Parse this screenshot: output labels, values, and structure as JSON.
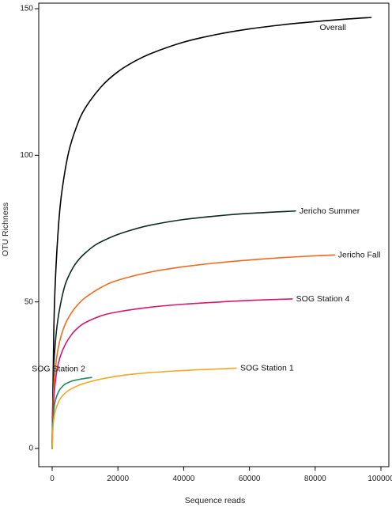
{
  "chart_data": {
    "type": "line",
    "title": "",
    "xlabel": "Sequence reads",
    "ylabel": "OTU Richness",
    "xlim": [
      0,
      100000
    ],
    "ylim": [
      0,
      150
    ],
    "xticks": [
      0,
      20000,
      40000,
      60000,
      80000,
      100000
    ],
    "yticks": [
      0,
      50,
      100,
      150
    ],
    "grid": false,
    "series": [
      {
        "name": "Overall",
        "color": "#000000",
        "x": [
          0,
          500,
          1000,
          2000,
          3000,
          5000,
          7500,
          10000,
          15000,
          20000,
          25000,
          30000,
          40000,
          50000,
          60000,
          70000,
          80000,
          90000,
          97000
        ],
        "y": [
          0,
          40,
          58,
          77,
          88,
          101,
          110,
          116,
          123.5,
          128.5,
          132,
          134.7,
          138.6,
          141.2,
          143.1,
          144.5,
          145.6,
          146.5,
          147
        ]
      },
      {
        "name": "Jericho Summer",
        "color": "#0b2a1f",
        "x": [
          0,
          300,
          700,
          1500,
          2500,
          4000,
          6000,
          8000,
          10000,
          13000,
          16000,
          20000,
          25000,
          30000,
          40000,
          50000,
          60000,
          74000
        ],
        "y": [
          0,
          22,
          32,
          42,
          49,
          56,
          61,
          64.3,
          66.6,
          69.3,
          71.1,
          73,
          74.8,
          76.2,
          78.1,
          79.3,
          80.2,
          81
        ]
      },
      {
        "name": "Jericho Fall",
        "color": "#f06a1f",
        "x": [
          0,
          300,
          700,
          1500,
          2500,
          4000,
          6000,
          8000,
          10000,
          15000,
          20000,
          30000,
          40000,
          50000,
          60000,
          70000,
          80000,
          86000
        ],
        "y": [
          0,
          16,
          24,
          32,
          37.5,
          42.5,
          46.5,
          49.3,
          51.4,
          55,
          57.4,
          60.2,
          62,
          63.3,
          64.3,
          65.1,
          65.7,
          66
        ]
      },
      {
        "name": "SOG Station 4",
        "color": "#d6176d",
        "x": [
          0,
          300,
          700,
          1500,
          2500,
          4000,
          6000,
          8000,
          10000,
          15000,
          20000,
          30000,
          40000,
          50000,
          60000,
          73000
        ],
        "y": [
          0,
          13,
          20,
          27,
          31.5,
          35.5,
          39,
          41.3,
          42.9,
          45.3,
          46.6,
          48.2,
          49.2,
          49.9,
          50.5,
          51
        ]
      },
      {
        "name": "SOG Station 2",
        "color": "#1e8a5e",
        "x": [
          0,
          200,
          500,
          1000,
          2000,
          3000,
          4000,
          6000,
          8000,
          10000,
          12000
        ],
        "y": [
          0,
          8,
          13,
          16.5,
          19.5,
          21,
          22,
          23,
          23.5,
          23.9,
          24.2
        ]
      },
      {
        "name": "SOG Station 1",
        "color": "#f5a623",
        "x": [
          0,
          200,
          500,
          1000,
          2000,
          3000,
          5000,
          8000,
          10000,
          15000,
          20000,
          25000,
          30000,
          40000,
          50000,
          56000
        ],
        "y": [
          0,
          6,
          10,
          13,
          16,
          17.8,
          19.8,
          21.5,
          22.3,
          23.7,
          24.7,
          25.4,
          25.9,
          26.6,
          27.1,
          27.4
        ]
      }
    ]
  }
}
